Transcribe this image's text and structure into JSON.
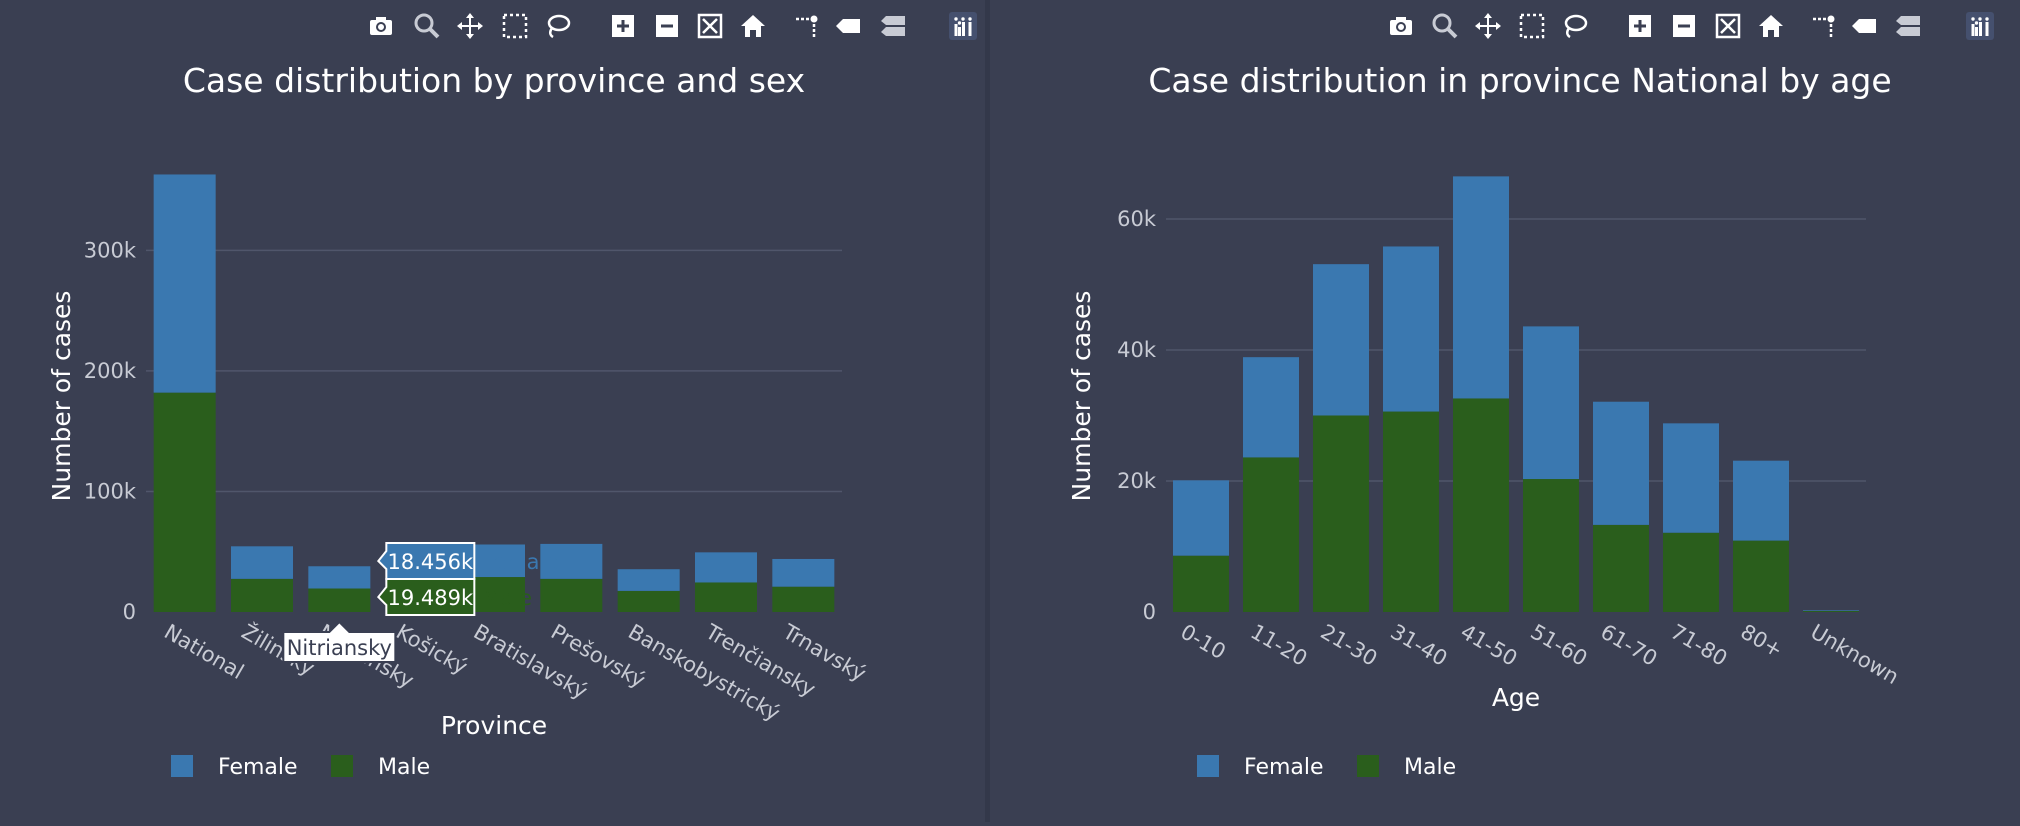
{
  "charts": [
    {
      "chart_data": {
        "type": "bar",
        "barmode": "stack",
        "title": "Case distribution by province and sex",
        "xlabel": "Province",
        "ylabel": "Number of cases",
        "categories": [
          "National",
          "Žilinský",
          "Nitriansky",
          "Košický",
          "Bratislavský",
          "Prešovský",
          "Banskobystrický",
          "Trenčiansky",
          "Trnavský"
        ],
        "series": [
          {
            "name": "Male",
            "color": "#2a5e1c",
            "values": [
              182000,
              27500,
              19489,
              22000,
              29000,
              27500,
              17500,
              24500,
              21000
            ]
          },
          {
            "name": "Female",
            "color": "#3a78b0",
            "values": [
              181000,
              27000,
              18456,
              20000,
              27000,
              29000,
              18000,
              25000,
              23000
            ]
          }
        ],
        "ylim": [
          0,
          375000
        ],
        "yticks": [
          0,
          100000,
          200000,
          300000
        ],
        "ytick_labels": [
          "0",
          "100k",
          "200k",
          "300k"
        ],
        "grid": true,
        "legend": {
          "placement": "bottom-left",
          "items": [
            "Female",
            "Male"
          ]
        },
        "hover": {
          "category_label": "Nitriansky",
          "female_label": "18.456k",
          "male_label": "19.489k",
          "female_trace": "Female",
          "male_trace": "Male"
        }
      }
    },
    {
      "chart_data": {
        "type": "bar",
        "barmode": "stack",
        "title": "Case distribution in province National by age",
        "xlabel": "Age",
        "ylabel": "Number of cases",
        "categories": [
          "0-10",
          "11-20",
          "21-30",
          "31-40",
          "41-50",
          "51-60",
          "61-70",
          "71-80",
          "80+",
          "Unknown"
        ],
        "series": [
          {
            "name": "Male",
            "color": "#2a5e1c",
            "values": [
              8600,
              23600,
              30000,
              30600,
              32600,
              20300,
              13300,
              12100,
              10900,
              150
            ]
          },
          {
            "name": "Female",
            "color": "#3a78b0",
            "values": [
              11500,
              15300,
              23100,
              25200,
              33900,
              23300,
              18800,
              16700,
              12200,
              100
            ]
          }
        ],
        "ylim": [
          0,
          69000
        ],
        "yticks": [
          0,
          20000,
          40000,
          60000
        ],
        "ytick_labels": [
          "0",
          "20k",
          "40k",
          "60k"
        ],
        "grid": true,
        "legend": {
          "placement": "bottom-left",
          "items": [
            "Female",
            "Male"
          ]
        }
      }
    }
  ],
  "modebar_icons": [
    "camera-icon",
    "zoom-icon",
    "pan-icon",
    "box-select-icon",
    "lasso-select-icon",
    "zoom-in-icon",
    "zoom-out-icon",
    "autoscale-icon",
    "reset-axes-icon",
    "spike-lines-icon",
    "hover-closest-icon",
    "hover-compare-icon",
    "plotly-logo-icon"
  ],
  "colors": {
    "background": "#3a3f52",
    "text": "#ffffff",
    "tick": "#c8cbd4",
    "grid": "#50566b",
    "female": "#3a78b0",
    "male": "#2a5e1c"
  }
}
